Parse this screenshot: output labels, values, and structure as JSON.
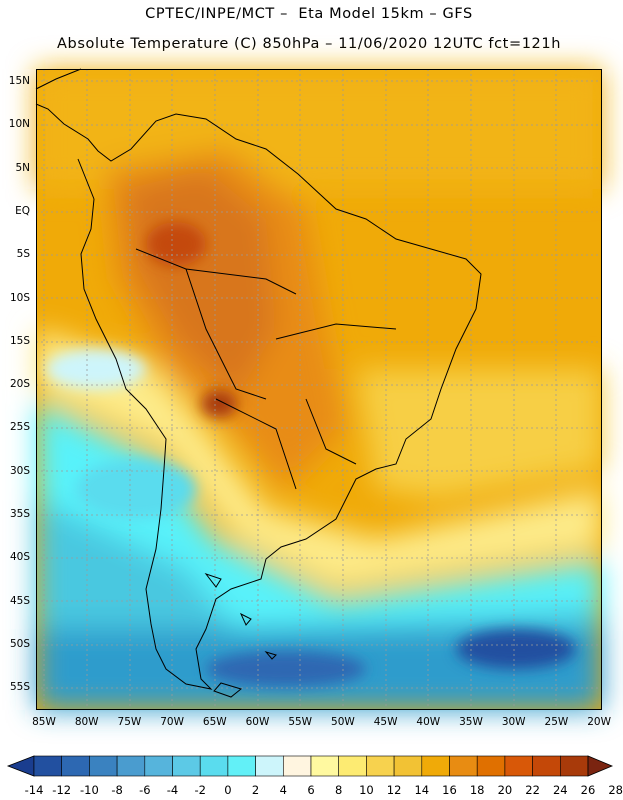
{
  "header": {
    "line1": "CPTEC/INPE/MCT –  Eta Model 15km – GFS",
    "line2": "Absolute Temperature (C) 850hPa – 11/06/2020 12UTC fct=121h"
  },
  "map": {
    "lat_labels": [
      "15N",
      "10N",
      "5N",
      "EQ",
      "5S",
      "10S",
      "15S",
      "20S",
      "25S",
      "30S",
      "35S",
      "40S",
      "45S",
      "50S",
      "55S"
    ],
    "lon_labels": [
      "85W",
      "80W",
      "75W",
      "70W",
      "65W",
      "60W",
      "55W",
      "50W",
      "45W",
      "40W",
      "35W",
      "30W",
      "25W",
      "20W"
    ],
    "colors": {
      "hot": "#e88c12",
      "warm": "#f0aa08",
      "mid": "#f7cf44",
      "cool": "#fdeb8a",
      "cold": "#58f2fa",
      "colder": "#48c8e0",
      "coldest": "#2f9ccc",
      "frame": "#000000"
    }
  },
  "colorbar": {
    "labels": [
      "-14",
      "-12",
      "-10",
      "-8",
      "-6",
      "-4",
      "-2",
      "0",
      "2",
      "4",
      "6",
      "8",
      "10",
      "12",
      "14",
      "16",
      "18",
      "20",
      "22",
      "24",
      "26",
      "28"
    ],
    "colors": [
      "#1a3d8f",
      "#2250a0",
      "#2d68b2",
      "#3a82c0",
      "#4a9ccf",
      "#56b4dc",
      "#5cc9e6",
      "#5adcee",
      "#62f0f7",
      "#cdf5fb",
      "#fff5e0",
      "#fff9a0",
      "#fdeb72",
      "#f7d24e",
      "#f2c234",
      "#f0aa08",
      "#e88c12",
      "#e07000",
      "#d85808",
      "#c44808",
      "#a83a0a",
      "#7a2410"
    ]
  }
}
